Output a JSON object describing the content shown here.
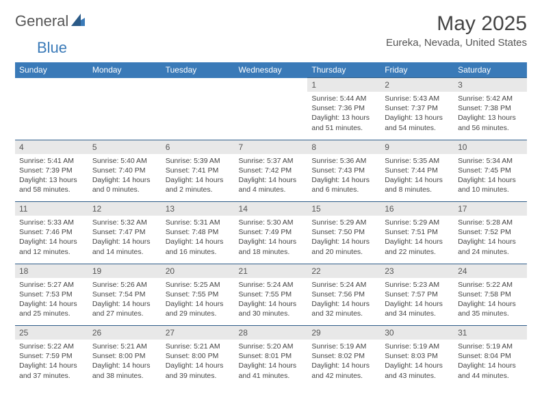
{
  "brand": {
    "general": "General",
    "blue": "Blue"
  },
  "title": "May 2025",
  "location": "Eureka, Nevada, United States",
  "colors": {
    "header_bg": "#3a7ab8",
    "header_text": "#ffffff",
    "daynum_bg": "#e8e8e8",
    "row_border": "#2b5a87",
    "text": "#444444",
    "background": "#ffffff"
  },
  "day_headers": [
    "Sunday",
    "Monday",
    "Tuesday",
    "Wednesday",
    "Thursday",
    "Friday",
    "Saturday"
  ],
  "weeks": [
    {
      "days": [
        null,
        null,
        null,
        null,
        {
          "n": "1",
          "sunrise": "Sunrise: 5:44 AM",
          "sunset": "Sunset: 7:36 PM",
          "daylight": "Daylight: 13 hours and 51 minutes."
        },
        {
          "n": "2",
          "sunrise": "Sunrise: 5:43 AM",
          "sunset": "Sunset: 7:37 PM",
          "daylight": "Daylight: 13 hours and 54 minutes."
        },
        {
          "n": "3",
          "sunrise": "Sunrise: 5:42 AM",
          "sunset": "Sunset: 7:38 PM",
          "daylight": "Daylight: 13 hours and 56 minutes."
        }
      ]
    },
    {
      "days": [
        {
          "n": "4",
          "sunrise": "Sunrise: 5:41 AM",
          "sunset": "Sunset: 7:39 PM",
          "daylight": "Daylight: 13 hours and 58 minutes."
        },
        {
          "n": "5",
          "sunrise": "Sunrise: 5:40 AM",
          "sunset": "Sunset: 7:40 PM",
          "daylight": "Daylight: 14 hours and 0 minutes."
        },
        {
          "n": "6",
          "sunrise": "Sunrise: 5:39 AM",
          "sunset": "Sunset: 7:41 PM",
          "daylight": "Daylight: 14 hours and 2 minutes."
        },
        {
          "n": "7",
          "sunrise": "Sunrise: 5:37 AM",
          "sunset": "Sunset: 7:42 PM",
          "daylight": "Daylight: 14 hours and 4 minutes."
        },
        {
          "n": "8",
          "sunrise": "Sunrise: 5:36 AM",
          "sunset": "Sunset: 7:43 PM",
          "daylight": "Daylight: 14 hours and 6 minutes."
        },
        {
          "n": "9",
          "sunrise": "Sunrise: 5:35 AM",
          "sunset": "Sunset: 7:44 PM",
          "daylight": "Daylight: 14 hours and 8 minutes."
        },
        {
          "n": "10",
          "sunrise": "Sunrise: 5:34 AM",
          "sunset": "Sunset: 7:45 PM",
          "daylight": "Daylight: 14 hours and 10 minutes."
        }
      ]
    },
    {
      "days": [
        {
          "n": "11",
          "sunrise": "Sunrise: 5:33 AM",
          "sunset": "Sunset: 7:46 PM",
          "daylight": "Daylight: 14 hours and 12 minutes."
        },
        {
          "n": "12",
          "sunrise": "Sunrise: 5:32 AM",
          "sunset": "Sunset: 7:47 PM",
          "daylight": "Daylight: 14 hours and 14 minutes."
        },
        {
          "n": "13",
          "sunrise": "Sunrise: 5:31 AM",
          "sunset": "Sunset: 7:48 PM",
          "daylight": "Daylight: 14 hours and 16 minutes."
        },
        {
          "n": "14",
          "sunrise": "Sunrise: 5:30 AM",
          "sunset": "Sunset: 7:49 PM",
          "daylight": "Daylight: 14 hours and 18 minutes."
        },
        {
          "n": "15",
          "sunrise": "Sunrise: 5:29 AM",
          "sunset": "Sunset: 7:50 PM",
          "daylight": "Daylight: 14 hours and 20 minutes."
        },
        {
          "n": "16",
          "sunrise": "Sunrise: 5:29 AM",
          "sunset": "Sunset: 7:51 PM",
          "daylight": "Daylight: 14 hours and 22 minutes."
        },
        {
          "n": "17",
          "sunrise": "Sunrise: 5:28 AM",
          "sunset": "Sunset: 7:52 PM",
          "daylight": "Daylight: 14 hours and 24 minutes."
        }
      ]
    },
    {
      "days": [
        {
          "n": "18",
          "sunrise": "Sunrise: 5:27 AM",
          "sunset": "Sunset: 7:53 PM",
          "daylight": "Daylight: 14 hours and 25 minutes."
        },
        {
          "n": "19",
          "sunrise": "Sunrise: 5:26 AM",
          "sunset": "Sunset: 7:54 PM",
          "daylight": "Daylight: 14 hours and 27 minutes."
        },
        {
          "n": "20",
          "sunrise": "Sunrise: 5:25 AM",
          "sunset": "Sunset: 7:55 PM",
          "daylight": "Daylight: 14 hours and 29 minutes."
        },
        {
          "n": "21",
          "sunrise": "Sunrise: 5:24 AM",
          "sunset": "Sunset: 7:55 PM",
          "daylight": "Daylight: 14 hours and 30 minutes."
        },
        {
          "n": "22",
          "sunrise": "Sunrise: 5:24 AM",
          "sunset": "Sunset: 7:56 PM",
          "daylight": "Daylight: 14 hours and 32 minutes."
        },
        {
          "n": "23",
          "sunrise": "Sunrise: 5:23 AM",
          "sunset": "Sunset: 7:57 PM",
          "daylight": "Daylight: 14 hours and 34 minutes."
        },
        {
          "n": "24",
          "sunrise": "Sunrise: 5:22 AM",
          "sunset": "Sunset: 7:58 PM",
          "daylight": "Daylight: 14 hours and 35 minutes."
        }
      ]
    },
    {
      "days": [
        {
          "n": "25",
          "sunrise": "Sunrise: 5:22 AM",
          "sunset": "Sunset: 7:59 PM",
          "daylight": "Daylight: 14 hours and 37 minutes."
        },
        {
          "n": "26",
          "sunrise": "Sunrise: 5:21 AM",
          "sunset": "Sunset: 8:00 PM",
          "daylight": "Daylight: 14 hours and 38 minutes."
        },
        {
          "n": "27",
          "sunrise": "Sunrise: 5:21 AM",
          "sunset": "Sunset: 8:00 PM",
          "daylight": "Daylight: 14 hours and 39 minutes."
        },
        {
          "n": "28",
          "sunrise": "Sunrise: 5:20 AM",
          "sunset": "Sunset: 8:01 PM",
          "daylight": "Daylight: 14 hours and 41 minutes."
        },
        {
          "n": "29",
          "sunrise": "Sunrise: 5:19 AM",
          "sunset": "Sunset: 8:02 PM",
          "daylight": "Daylight: 14 hours and 42 minutes."
        },
        {
          "n": "30",
          "sunrise": "Sunrise: 5:19 AM",
          "sunset": "Sunset: 8:03 PM",
          "daylight": "Daylight: 14 hours and 43 minutes."
        },
        {
          "n": "31",
          "sunrise": "Sunrise: 5:19 AM",
          "sunset": "Sunset: 8:04 PM",
          "daylight": "Daylight: 14 hours and 44 minutes."
        }
      ]
    }
  ]
}
